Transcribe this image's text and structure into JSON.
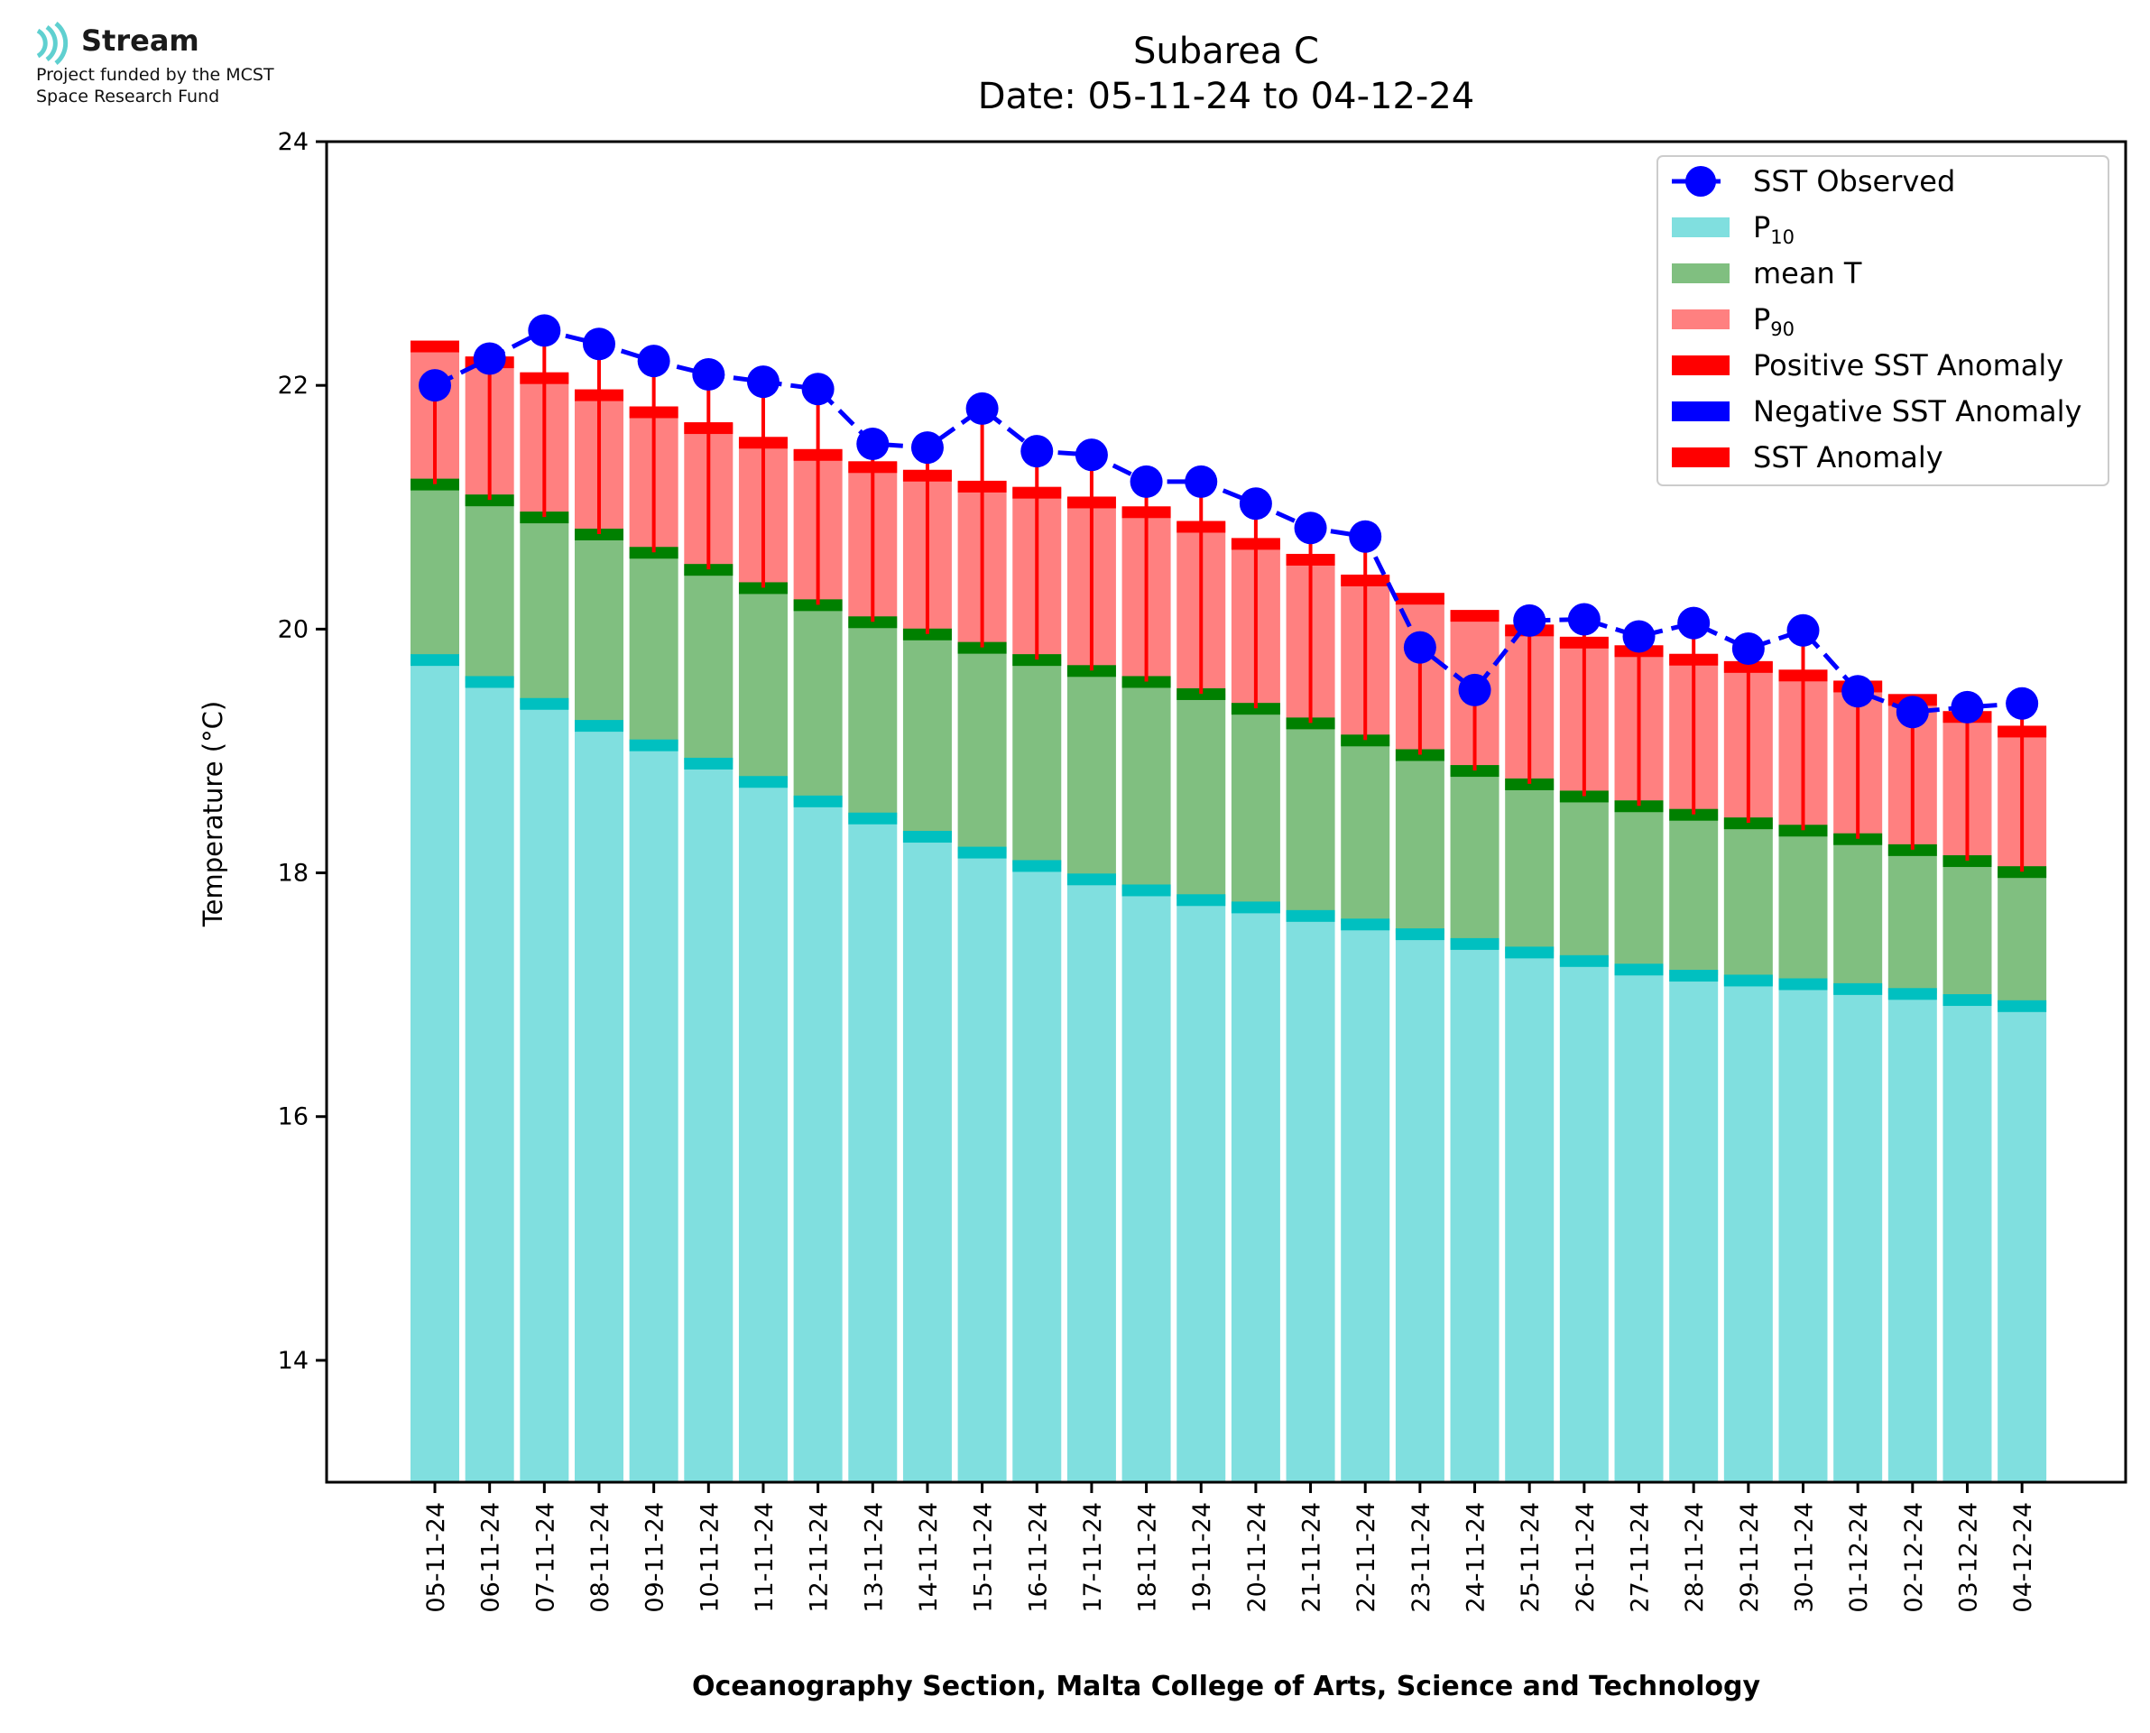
{
  "logo": {
    "brand": "Stream",
    "funding_line1": "Project funded by the MCST",
    "funding_line2": "Space Research Fund",
    "icon": "stream-waves-icon"
  },
  "chart_data": {
    "type": "bar",
    "title": "Subarea C",
    "subtitle": "Date: 05-11-24 to 04-12-24",
    "ylabel": "Temperature (°C)",
    "xlabel": "Oceanography Section, Malta College of Arts, Science and Technology",
    "ylim": [
      13,
      24
    ],
    "yticks": [
      14,
      16,
      18,
      20,
      22,
      24
    ],
    "grid": false,
    "legend_position": "top-right",
    "categories": [
      "05-11-24",
      "06-11-24",
      "07-11-24",
      "08-11-24",
      "09-11-24",
      "10-11-24",
      "11-11-24",
      "12-11-24",
      "13-11-24",
      "14-11-24",
      "15-11-24",
      "16-11-24",
      "17-11-24",
      "18-11-24",
      "19-11-24",
      "20-11-24",
      "21-11-24",
      "22-11-24",
      "23-11-24",
      "24-11-24",
      "25-11-24",
      "26-11-24",
      "27-11-24",
      "28-11-24",
      "29-11-24",
      "30-11-24",
      "01-12-24",
      "02-12-24",
      "03-12-24",
      "04-12-24"
    ],
    "series": [
      {
        "name": "SST Observed",
        "kind": "line-markers",
        "color": "#0000ff",
        "values": [
          22.0,
          22.22,
          22.45,
          22.34,
          22.2,
          22.09,
          22.03,
          21.97,
          21.52,
          21.49,
          21.81,
          21.46,
          21.43,
          21.21,
          21.21,
          21.03,
          20.83,
          20.76,
          19.85,
          19.5,
          20.07,
          20.08,
          19.94,
          20.05,
          19.84,
          19.99,
          19.49,
          19.32,
          19.36,
          19.39
        ]
      },
      {
        "name": "P10",
        "kind": "bar",
        "color": "#80dfdf",
        "values": [
          19.75,
          19.57,
          19.39,
          19.21,
          19.05,
          18.9,
          18.75,
          18.59,
          18.45,
          18.3,
          18.17,
          18.06,
          17.95,
          17.86,
          17.78,
          17.72,
          17.65,
          17.58,
          17.5,
          17.42,
          17.35,
          17.28,
          17.21,
          17.16,
          17.12,
          17.09,
          17.05,
          17.01,
          16.96,
          16.91
        ]
      },
      {
        "name": "mean T",
        "kind": "bar",
        "color": "#80bf80",
        "values": [
          21.19,
          21.06,
          20.92,
          20.78,
          20.63,
          20.49,
          20.34,
          20.2,
          20.06,
          19.96,
          19.85,
          19.75,
          19.66,
          19.57,
          19.47,
          19.35,
          19.23,
          19.09,
          18.97,
          18.84,
          18.73,
          18.63,
          18.55,
          18.48,
          18.41,
          18.35,
          18.28,
          18.19,
          18.1,
          18.01
        ]
      },
      {
        "name": "P90",
        "kind": "bar",
        "color": "#ff8080",
        "values": [
          22.36,
          22.23,
          22.1,
          21.96,
          21.82,
          21.69,
          21.57,
          21.47,
          21.37,
          21.3,
          21.21,
          21.16,
          21.08,
          21.0,
          20.88,
          20.74,
          20.61,
          20.44,
          20.29,
          20.15,
          20.03,
          19.93,
          19.86,
          19.79,
          19.73,
          19.66,
          19.57,
          19.46,
          19.32,
          19.2
        ]
      },
      {
        "name": "Positive SST Anomaly",
        "kind": "bar",
        "color": "#ff0000"
      },
      {
        "name": "Negative SST Anomaly",
        "kind": "bar",
        "color": "#0000ff"
      },
      {
        "name": "SST Anomaly",
        "kind": "errorbar",
        "color": "#ff0000"
      }
    ],
    "legend": [
      {
        "label": "SST Observed",
        "sub": "",
        "type": "line"
      },
      {
        "label": "P",
        "sub": "10",
        "type": "patch",
        "color": "#80dfdf"
      },
      {
        "label": "mean T",
        "sub": "",
        "type": "patch",
        "color": "#80bf80"
      },
      {
        "label": "P",
        "sub": "90",
        "type": "patch",
        "color": "#ff8080"
      },
      {
        "label": "Positive SST Anomaly",
        "sub": "",
        "type": "patch",
        "color": "#ff0000"
      },
      {
        "label": "Negative SST Anomaly",
        "sub": "",
        "type": "patch",
        "color": "#0000ff"
      },
      {
        "label": "SST Anomaly",
        "sub": "",
        "type": "patch",
        "color": "#ff0000"
      }
    ]
  }
}
